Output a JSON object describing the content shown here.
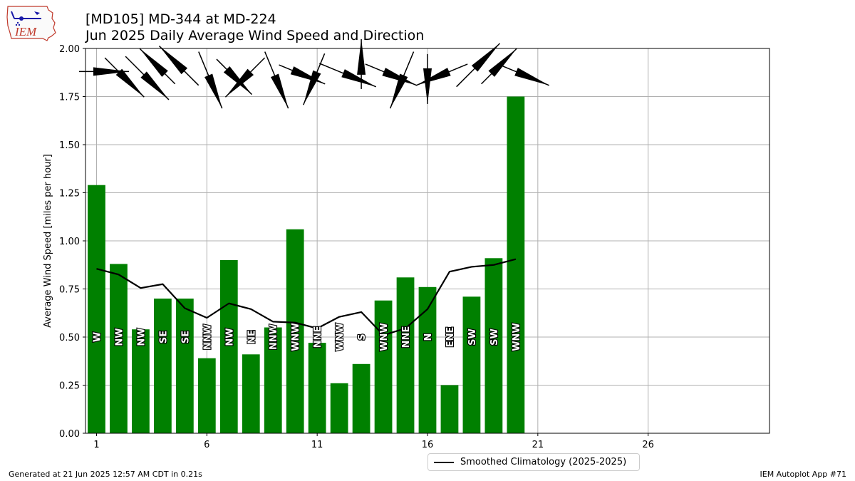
{
  "title_line1": "[MD105] MD-344 at MD-224",
  "title_line2": "Jun 2025 Daily Average Wind Speed and Direction",
  "logo_text": "IEM",
  "footer_left": "Generated at 21 Jun 2025 12:57 AM CDT in 0.21s",
  "footer_right": "IEM Autoplot App #71",
  "legend_label": "Smoothed Climatology (2025-2025)",
  "colors": {
    "bar": "#008000",
    "line": "#000000",
    "grid": "#b0b0b0",
    "arrow": "#000000"
  },
  "chart_data": {
    "type": "bar",
    "ylabel": "Average Wind Speed [miles per hour]",
    "xlim": [
      0.5,
      31.5
    ],
    "ylim": [
      0,
      2.0
    ],
    "x_ticks": [
      1,
      6,
      11,
      16,
      21,
      26
    ],
    "y_ticks": [
      "0.00",
      "0.25",
      "0.50",
      "0.75",
      "1.00",
      "1.25",
      "1.50",
      "1.75",
      "2.00"
    ],
    "grid": true,
    "days": [
      1,
      2,
      3,
      4,
      5,
      6,
      7,
      8,
      9,
      10,
      11,
      12,
      13,
      14,
      15,
      16,
      17,
      18,
      19,
      20
    ],
    "values": [
      1.29,
      0.88,
      0.54,
      0.7,
      0.7,
      0.39,
      0.9,
      0.41,
      0.55,
      1.06,
      0.47,
      0.26,
      0.36,
      0.69,
      0.81,
      0.76,
      0.25,
      0.71,
      0.91,
      1.75
    ],
    "directions": [
      "W",
      "NW",
      "NW",
      "SE",
      "SE",
      "NNW",
      "NW",
      "NE",
      "NNW",
      "WNW",
      "NNE",
      "WNW",
      "S",
      "WNW",
      "NNE",
      "N",
      "ENE",
      "SW",
      "SW",
      "WNW"
    ],
    "series": [
      {
        "name": "Smoothed Climatology (2025-2025)",
        "type": "line",
        "x": [
          1,
          2,
          3,
          4,
          5,
          6,
          7,
          8,
          9,
          10,
          11,
          12,
          13,
          14,
          15,
          16,
          17,
          18,
          19,
          20
        ],
        "values": [
          0.855,
          0.825,
          0.755,
          0.775,
          0.65,
          0.6,
          0.675,
          0.645,
          0.58,
          0.575,
          0.545,
          0.605,
          0.63,
          0.51,
          0.545,
          0.645,
          0.84,
          0.865,
          0.875,
          0.905
        ]
      }
    ]
  }
}
